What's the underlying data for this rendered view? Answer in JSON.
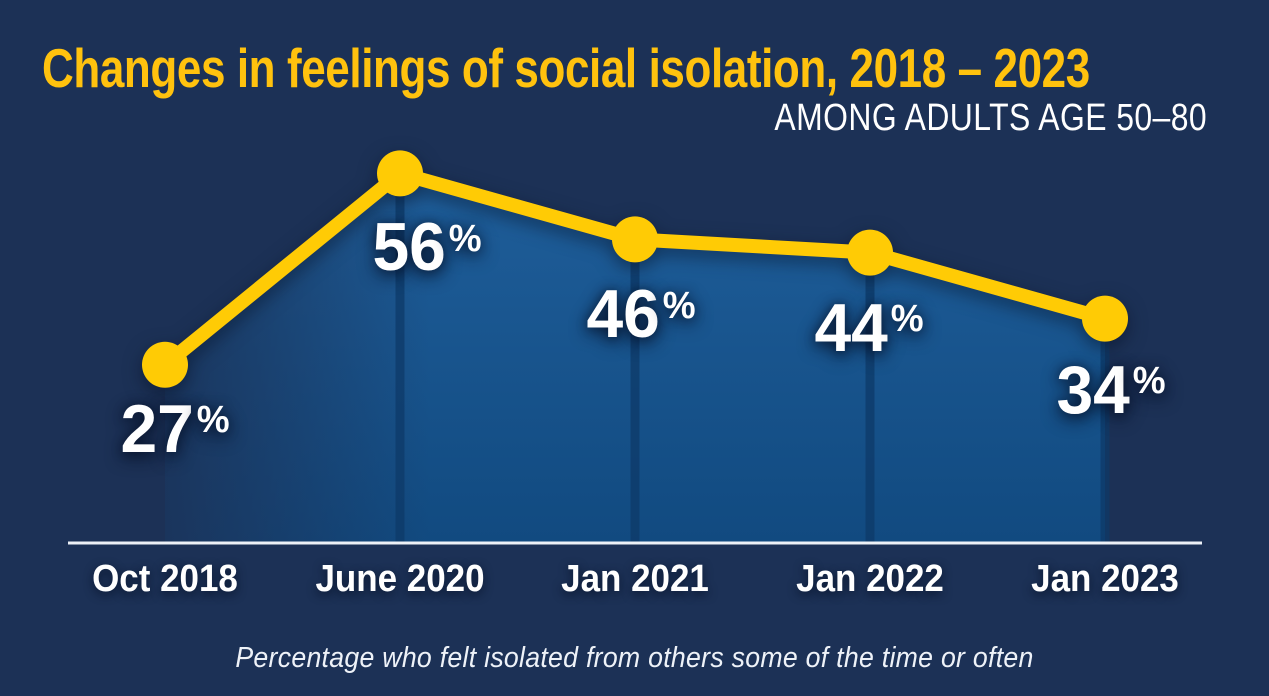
{
  "title": "Changes in feelings of social isolation, 2018 – 2023",
  "subtitle": "AMONG ADULTS AGE 50–80",
  "caption": "Percentage who felt isolated from others some of the time or often",
  "colors": {
    "background": "#1C3156",
    "title_text": "#FFC20E",
    "subtitle_text": "#FFFFFF",
    "line_and_dots": "#FFCB05",
    "value_label_text": "#FFFFFF",
    "x_label_text": "#FFFFFF",
    "caption_text": "#EEF2F8",
    "area_fill_top": "#1F5E9A",
    "area_fill_bottom": "#114A80",
    "divider_line": "#0D3A68",
    "baseline": "#EDF1F7"
  },
  "chart_data": {
    "type": "line",
    "style": "area fill under line with point markers and value labels",
    "x": [
      "Oct 2018",
      "June 2020",
      "Jan 2021",
      "Jan 2022",
      "Jan 2023"
    ],
    "values": [
      27,
      56,
      46,
      44,
      34
    ],
    "unit": "%",
    "title": "Changes in feelings of social isolation, 2018 – 2023",
    "subtitle": "AMONG ADULTS AGE 50–80",
    "caption": "Percentage who felt isolated from others some of the time or often",
    "ylim": [
      0,
      70
    ],
    "y_baseline": 0,
    "grid": false,
    "legend": false,
    "y_axis_visible": false,
    "x_axis_line": true
  }
}
